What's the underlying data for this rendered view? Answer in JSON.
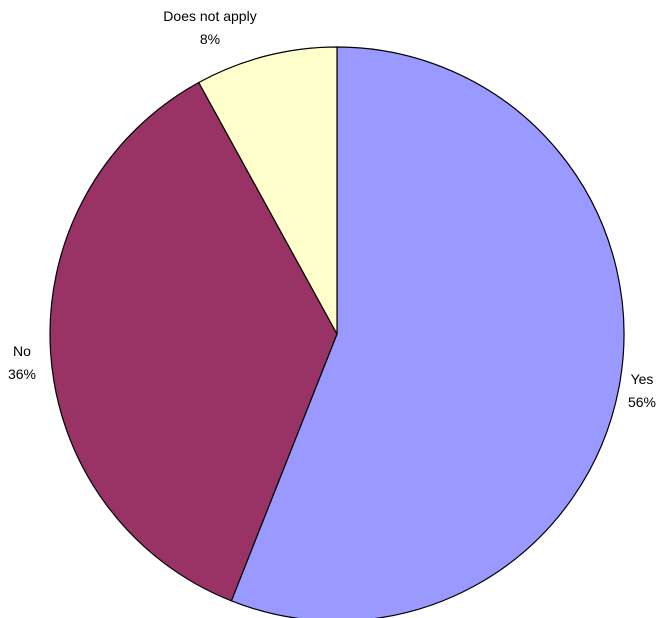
{
  "chart_data": {
    "type": "pie",
    "slices": [
      {
        "label": "Yes",
        "value": 56,
        "percent_label": "56%",
        "color": "#9999FF"
      },
      {
        "label": "No",
        "value": 36,
        "percent_label": "36%",
        "color": "#993366"
      },
      {
        "label": "Does not apply",
        "value": 8,
        "percent_label": "8%",
        "color": "#FFFFCC"
      }
    ],
    "start_angle_deg": 0,
    "direction": "clockwise",
    "outline_color": "#000000",
    "legend": "none"
  }
}
